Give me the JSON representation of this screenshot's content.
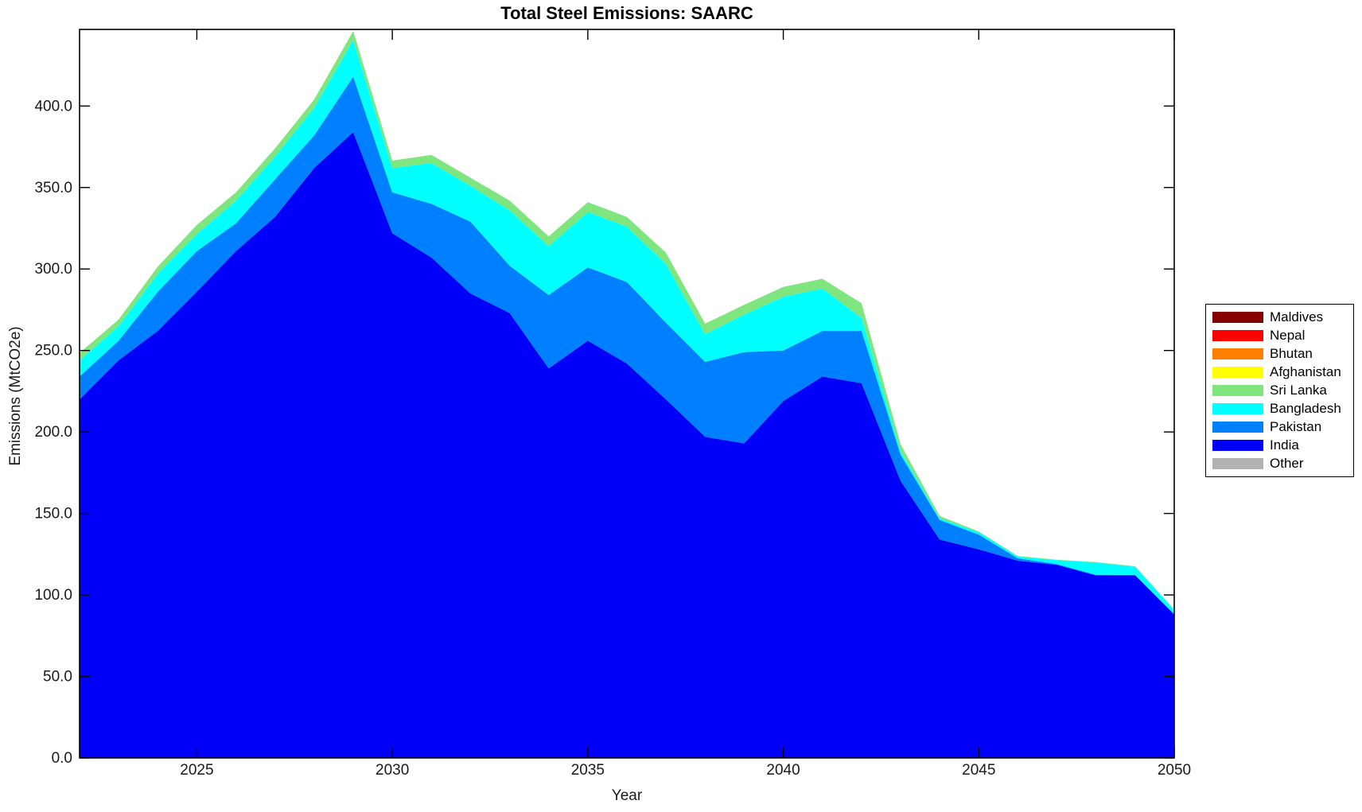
{
  "title": "Total Steel Emissions: SAARC",
  "xlabel": "Year",
  "ylabel": "Emissions (MtCO2e)",
  "axis_color": "#000000",
  "tick_label_color": "#1a1a1a",
  "chart_data": {
    "type": "area",
    "stacked": true,
    "grid": false,
    "xlim": [
      2022,
      2050
    ],
    "ylim": [
      0,
      447
    ],
    "x": [
      2022,
      2023,
      2024,
      2025,
      2026,
      2027,
      2028,
      2029,
      2030,
      2031,
      2032,
      2033,
      2034,
      2035,
      2036,
      2037,
      2038,
      2039,
      2040,
      2041,
      2042,
      2043,
      2044,
      2045,
      2046,
      2047,
      2048,
      2049,
      2050
    ],
    "xticks": {
      "values": [
        2025,
        2030,
        2035,
        2040,
        2045,
        2050
      ],
      "labels": [
        "2025",
        "2030",
        "2035",
        "2040",
        "2045",
        "2050"
      ]
    },
    "yticks": {
      "values": [
        0,
        50,
        100,
        150,
        200,
        250,
        300,
        350,
        400
      ],
      "labels": [
        "0.0",
        "50.0",
        "100.0",
        "150.0",
        "200.0",
        "250.0",
        "300.0",
        "350.0",
        "400.0"
      ]
    },
    "series_stack_bottom_to_top": [
      {
        "name": "Other",
        "color": "#B2B2B2",
        "values": [
          0,
          0,
          0,
          0,
          0,
          0,
          0,
          0,
          0,
          0,
          0,
          0,
          0,
          0,
          0,
          0,
          0,
          0,
          0,
          0,
          0,
          0,
          0,
          0,
          0,
          0,
          0,
          0,
          0
        ]
      },
      {
        "name": "India",
        "color": "#0000FA",
        "values": [
          220,
          244,
          262,
          286,
          311,
          332,
          362,
          384,
          322,
          307,
          285,
          273,
          239,
          256,
          242,
          220,
          197,
          193,
          219,
          234,
          230,
          170,
          134,
          128,
          121,
          118.5,
          112,
          112,
          88
        ]
      },
      {
        "name": "Pakistan",
        "color": "#0080FF",
        "values": [
          14,
          12,
          24,
          25,
          17,
          23,
          20,
          34,
          25,
          33,
          44,
          29,
          45,
          45,
          50,
          47,
          46,
          56,
          31,
          28,
          32,
          16,
          12,
          9,
          1.5,
          0.4,
          0.4,
          0.3,
          0.3
        ]
      },
      {
        "name": "Bangladesh",
        "color": "#00FFFF",
        "values": [
          10,
          9,
          11,
          10.5,
          14,
          14,
          17,
          22.5,
          15,
          25,
          22,
          34,
          30,
          34,
          34,
          36,
          17,
          23,
          33,
          26,
          8,
          2,
          1,
          1.5,
          1,
          2.5,
          7.5,
          5,
          2.5
        ]
      },
      {
        "name": "Sri Lanka",
        "color": "#7FE57F",
        "values": [
          4.5,
          4,
          4.5,
          5.5,
          5,
          5,
          5,
          5.5,
          4.5,
          5,
          5,
          6,
          6,
          6,
          6,
          7,
          6.5,
          6,
          6,
          6,
          9,
          4.5,
          1.5,
          0.5,
          0.4,
          0.2,
          0.3,
          0.3,
          0.2
        ]
      },
      {
        "name": "Afghanistan",
        "color": "#FFFF00",
        "values": [
          0,
          0,
          0,
          0,
          0,
          0,
          0,
          0,
          0,
          0,
          0,
          0,
          0,
          0,
          0,
          0,
          0,
          0,
          0,
          0,
          0,
          0,
          0,
          0,
          0,
          0,
          0,
          0,
          0
        ]
      },
      {
        "name": "Bhutan",
        "color": "#FF8000",
        "values": [
          0,
          0,
          0,
          0,
          0,
          0,
          0,
          0,
          0,
          0,
          0,
          0,
          0,
          0,
          0,
          0,
          0,
          0,
          0,
          0,
          0,
          0,
          0,
          0,
          0,
          0,
          0,
          0,
          0
        ]
      },
      {
        "name": "Nepal",
        "color": "#FF0000",
        "values": [
          0,
          0,
          0,
          0,
          0,
          0,
          0,
          0,
          0,
          0,
          0,
          0,
          0,
          0,
          0,
          0,
          0,
          0,
          0,
          0,
          0,
          0,
          0,
          0,
          0,
          0,
          0,
          0,
          0
        ]
      },
      {
        "name": "Maldives",
        "color": "#850000",
        "values": [
          0,
          0,
          0,
          0,
          0,
          0,
          0,
          0,
          0,
          0,
          0,
          0,
          0,
          0,
          0,
          0,
          0,
          0,
          0,
          0,
          0,
          0,
          0,
          0,
          0,
          0,
          0,
          0,
          0
        ]
      }
    ],
    "legend": {
      "position": "right-outside",
      "entries_top_to_bottom": [
        {
          "label": "Maldives",
          "color": "#850000"
        },
        {
          "label": "Nepal",
          "color": "#FF0000"
        },
        {
          "label": "Bhutan",
          "color": "#FF8000"
        },
        {
          "label": "Afghanistan",
          "color": "#FFFF00"
        },
        {
          "label": "Sri Lanka",
          "color": "#7FE57F"
        },
        {
          "label": "Bangladesh",
          "color": "#00FFFF"
        },
        {
          "label": "Pakistan",
          "color": "#0080FF"
        },
        {
          "label": "India",
          "color": "#0000FA"
        },
        {
          "label": "Other",
          "color": "#B2B2B2"
        }
      ]
    }
  }
}
